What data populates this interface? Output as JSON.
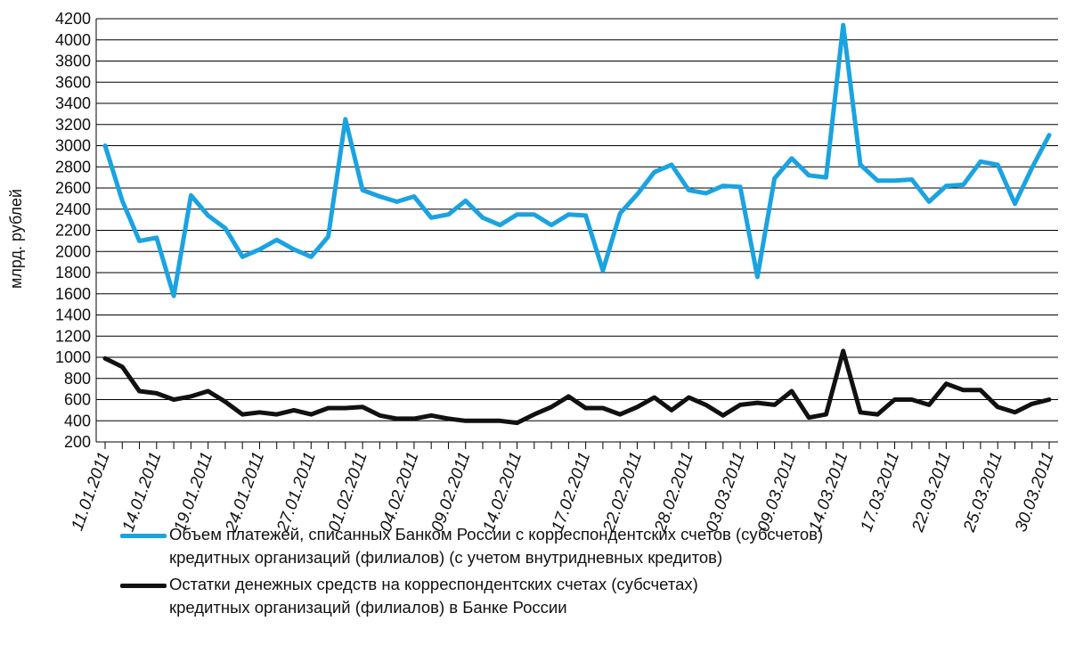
{
  "chart_data": {
    "type": "line",
    "ylabel": "млрд. рублей",
    "ylim": [
      200,
      4200
    ],
    "yticks": [
      200,
      400,
      600,
      800,
      1000,
      1200,
      1400,
      1600,
      1800,
      2000,
      2200,
      2400,
      2600,
      2800,
      3000,
      3200,
      3400,
      3600,
      3800,
      4000,
      4200
    ],
    "grid": true,
    "legend_position": "bottom",
    "x_tick_labels": [
      "11.01.2011",
      "14.01.2011",
      "19.01.2011",
      "24.01.2011",
      "27.01.2011",
      "01.02.2011",
      "04.02.2011",
      "09.02.2011",
      "14.02.2011",
      "17.02.2011",
      "22.02.2011",
      "28.02.2011",
      "03.03.2011",
      "09.03.2011",
      "14.03.2011",
      "17.03.2011",
      "22.03.2011",
      "25.03.2011",
      "30.03.2011"
    ],
    "series": [
      {
        "name": "Объем платежей, списанных Банком России с корреспондентских счетов (субсчетов)\nкредитных организаций (филиалов) (с учетом внутридневных кредитов)",
        "color": "#1aa3e0",
        "values": [
          3000,
          2480,
          2100,
          2130,
          1580,
          2530,
          2340,
          2220,
          1950,
          2020,
          2110,
          2020,
          1950,
          2140,
          3250,
          2580,
          2520,
          2470,
          2520,
          2320,
          2350,
          2480,
          2320,
          2250,
          2350,
          2350,
          2250,
          2350,
          2340,
          1820,
          2360,
          2540,
          2750,
          2820,
          2580,
          2550,
          2620,
          2610,
          1760,
          2690,
          2880,
          2720,
          2700,
          4140,
          2820,
          2670,
          2670,
          2680,
          2470,
          2620,
          2630,
          2850,
          2820,
          2450,
          2790,
          3100
        ]
      },
      {
        "name": "Остатки денежных средств на корреспондентских счетах (субсчетах)\nкредитных организаций (филиалов) в Банке России",
        "color": "#111111",
        "values": [
          990,
          910,
          680,
          660,
          600,
          630,
          680,
          580,
          460,
          480,
          460,
          500,
          460,
          520,
          520,
          530,
          450,
          420,
          420,
          450,
          420,
          400,
          400,
          400,
          380,
          460,
          530,
          630,
          520,
          520,
          460,
          530,
          620,
          500,
          620,
          550,
          450,
          550,
          570,
          550,
          680,
          430,
          460,
          1060,
          480,
          460,
          600,
          600,
          550,
          750,
          690,
          690,
          530,
          480,
          560,
          600
        ]
      }
    ]
  }
}
